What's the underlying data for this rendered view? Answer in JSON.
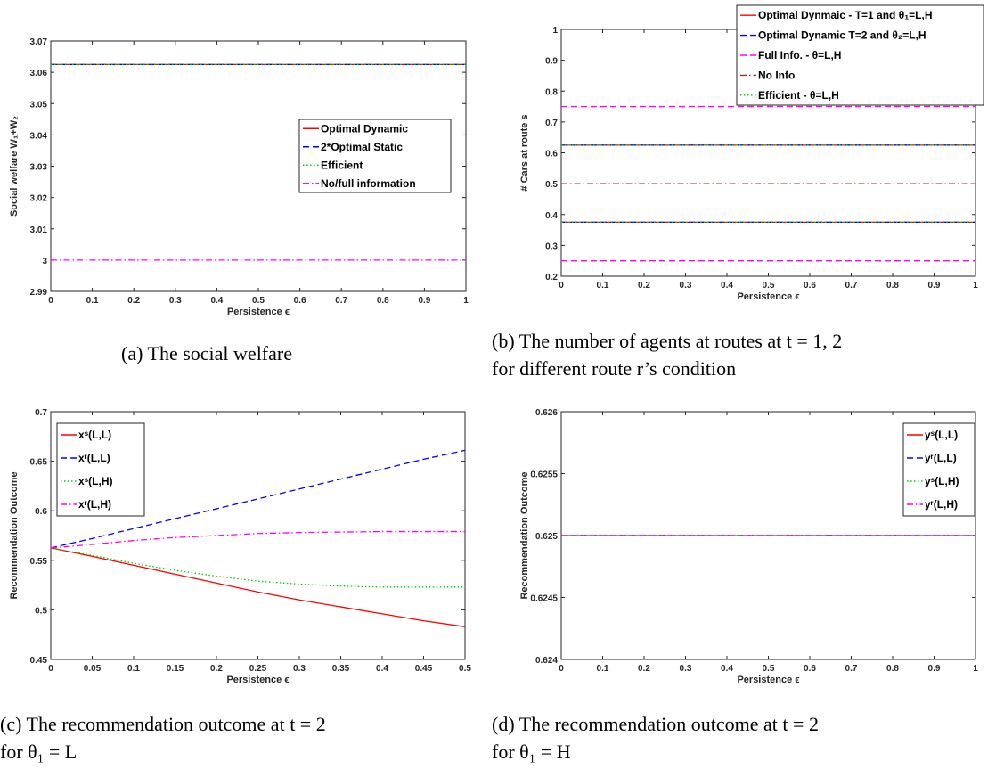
{
  "chart_data": [
    {
      "type": "line",
      "caption": [
        "(a) The social welfare"
      ],
      "xlabel": "Persistence ϵ",
      "ylabel": "Social welfare W₁+W₂",
      "xlim": [
        0,
        1
      ],
      "ylim": [
        2.99,
        3.07
      ],
      "xticks": [
        "0",
        "0.1",
        "0.2",
        "0.3",
        "0.4",
        "0.5",
        "0.6",
        "0.7",
        "0.8",
        "0.9",
        "1"
      ],
      "yticks": [
        "2.99",
        "3",
        "3.01",
        "3.02",
        "3.03",
        "3.04",
        "3.05",
        "3.06",
        "3.07"
      ],
      "legend_position": "right",
      "series": [
        {
          "name": "Optimal Dynamic",
          "color": "#ff0000",
          "dash": "solid",
          "x": [
            0,
            1
          ],
          "y": [
            3.0625,
            3.0625
          ],
          "legend": true
        },
        {
          "name": "2*Optimal Static",
          "color": "#0000ff",
          "dash": "dashed",
          "x": [
            0,
            1
          ],
          "y": [
            3.0625,
            3.0625
          ],
          "legend": true
        },
        {
          "name": "Efficient",
          "color": "#00cc00",
          "dash": "dotted",
          "x": [
            0,
            1
          ],
          "y": [
            3.0625,
            3.0625
          ],
          "legend": true
        },
        {
          "name": "No/full information",
          "color": "#ff00ff",
          "dash": "dashdot",
          "x": [
            0,
            1
          ],
          "y": [
            3.0,
            3.0
          ],
          "legend": true
        }
      ]
    },
    {
      "type": "line",
      "caption": [
        "(b) The number of agents at routes at t = 1, 2",
        "for different route r’s condition"
      ],
      "xlabel": "Persistence ϵ",
      "ylabel": "# Cars at route s",
      "xlim": [
        0,
        1
      ],
      "ylim": [
        0.2,
        1
      ],
      "xticks": [
        "0",
        "0.1",
        "0.2",
        "0.3",
        "0.4",
        "0.5",
        "0.6",
        "0.7",
        "0.8",
        "0.9",
        "1"
      ],
      "yticks": [
        "0.2",
        "0.3",
        "0.4",
        "0.5",
        "0.6",
        "0.7",
        "0.8",
        "0.9",
        "1"
      ],
      "legend_position": "top-right",
      "series": [
        {
          "name": "Optimal Dynmaic - T=1 and θ₁=L,H",
          "color": "#ff0000",
          "dash": "solid",
          "x": [
            0,
            1
          ],
          "y": [
            0.625,
            0.625
          ],
          "legend": true
        },
        {
          "name": "",
          "color": "#ff0000",
          "dash": "solid",
          "x": [
            0,
            1
          ],
          "y": [
            0.375,
            0.375
          ],
          "legend": false
        },
        {
          "name": "Optimal Dynamic T=2 and θ₂=L,H",
          "color": "#0000ff",
          "dash": "dashed",
          "x": [
            0,
            1
          ],
          "y": [
            0.625,
            0.625
          ],
          "legend": true
        },
        {
          "name": "",
          "color": "#0000ff",
          "dash": "dashed",
          "x": [
            0,
            1
          ],
          "y": [
            0.375,
            0.375
          ],
          "legend": false
        },
        {
          "name": "Full Info. - θ=L,H",
          "color": "#ff00ff",
          "dash": "dashed",
          "x": [
            0,
            1
          ],
          "y": [
            0.75,
            0.75
          ],
          "legend": true
        },
        {
          "name": "",
          "color": "#ff00ff",
          "dash": "dashed",
          "x": [
            0,
            1
          ],
          "y": [
            0.25,
            0.25
          ],
          "legend": false
        },
        {
          "name": "No Info",
          "color": "#a52a2a",
          "dash": "dashdot",
          "x": [
            0,
            1
          ],
          "y": [
            0.5,
            0.5
          ],
          "legend": true
        },
        {
          "name": "Efficient - θ=L,H",
          "color": "#00cc00",
          "dash": "dotted",
          "x": [
            0,
            1
          ],
          "y": [
            0.625,
            0.625
          ],
          "legend": true
        },
        {
          "name": "",
          "color": "#00cc00",
          "dash": "dotted",
          "x": [
            0,
            1
          ],
          "y": [
            0.375,
            0.375
          ],
          "legend": false
        }
      ]
    },
    {
      "type": "line",
      "caption": [
        "(c) The recommendation outcome at t = 2",
        "for θ₁ = L"
      ],
      "xlabel": "Persistence ϵ",
      "ylabel": "Recommendation Outcome",
      "xlim": [
        0,
        0.5
      ],
      "ylim": [
        0.45,
        0.7
      ],
      "xticks": [
        "0",
        "0.05",
        "0.1",
        "0.15",
        "0.2",
        "0.25",
        "0.3",
        "0.35",
        "0.4",
        "0.45",
        "0.5"
      ],
      "yticks": [
        "0.45",
        "0.5",
        "0.55",
        "0.6",
        "0.65",
        "0.7"
      ],
      "legend_position": "top-left",
      "series": [
        {
          "name": "xˢ(L,L)",
          "color": "#ff0000",
          "dash": "solid",
          "x": [
            0,
            0.05,
            0.1,
            0.15,
            0.2,
            0.25,
            0.3,
            0.35,
            0.4,
            0.45,
            0.5
          ],
          "y": [
            0.5625,
            0.554,
            0.545,
            0.536,
            0.527,
            0.518,
            0.51,
            0.503,
            0.496,
            0.489,
            0.483
          ],
          "legend": true
        },
        {
          "name": "xʳ(L,L)",
          "color": "#0000ff",
          "dash": "dashed",
          "x": [
            0,
            0.05,
            0.1,
            0.15,
            0.2,
            0.25,
            0.3,
            0.35,
            0.4,
            0.45,
            0.5
          ],
          "y": [
            0.5625,
            0.572,
            0.582,
            0.592,
            0.602,
            0.612,
            0.622,
            0.632,
            0.642,
            0.652,
            0.661
          ],
          "legend": true
        },
        {
          "name": "xˢ(L,H)",
          "color": "#00cc00",
          "dash": "dotted",
          "x": [
            0,
            0.05,
            0.1,
            0.15,
            0.2,
            0.25,
            0.3,
            0.35,
            0.4,
            0.45,
            0.5
          ],
          "y": [
            0.5625,
            0.555,
            0.547,
            0.54,
            0.534,
            0.529,
            0.526,
            0.524,
            0.523,
            0.523,
            0.523
          ],
          "legend": true
        },
        {
          "name": "xʳ(L,H)",
          "color": "#ff00ff",
          "dash": "dashdot",
          "x": [
            0,
            0.05,
            0.1,
            0.15,
            0.2,
            0.25,
            0.3,
            0.35,
            0.4,
            0.45,
            0.5
          ],
          "y": [
            0.5625,
            0.566,
            0.57,
            0.573,
            0.575,
            0.577,
            0.578,
            0.5785,
            0.579,
            0.579,
            0.579
          ],
          "legend": true
        }
      ]
    },
    {
      "type": "line",
      "caption": [
        "(d) The recommendation outcome at t = 2",
        "for θ₁ = H"
      ],
      "xlabel": "Persistence ϵ",
      "ylabel": "Recommendation Outcome",
      "xlim": [
        0,
        1
      ],
      "ylim": [
        0.624,
        0.626
      ],
      "xticks": [
        "0",
        "0.1",
        "0.2",
        "0.3",
        "0.4",
        "0.5",
        "0.6",
        "0.7",
        "0.8",
        "0.9",
        "1"
      ],
      "yticks": [
        "0.624",
        "0.6245",
        "0.625",
        "0.6255",
        "0.626"
      ],
      "legend_position": "top-right",
      "series": [
        {
          "name": "yˢ(L,L)",
          "color": "#ff0000",
          "dash": "solid",
          "x": [
            0,
            1
          ],
          "y": [
            0.625,
            0.625
          ],
          "legend": true
        },
        {
          "name": "yʳ(L,L)",
          "color": "#0000ff",
          "dash": "dashed",
          "x": [
            0,
            1
          ],
          "y": [
            0.625,
            0.625
          ],
          "legend": true
        },
        {
          "name": "yˢ(L,H)",
          "color": "#00cc00",
          "dash": "dotted",
          "x": [
            0,
            1
          ],
          "y": [
            0.625,
            0.625
          ],
          "legend": true
        },
        {
          "name": "yʳ(L,H)",
          "color": "#ff00ff",
          "dash": "dashdot",
          "x": [
            0,
            1
          ],
          "y": [
            0.625,
            0.625
          ],
          "legend": true
        }
      ]
    }
  ]
}
